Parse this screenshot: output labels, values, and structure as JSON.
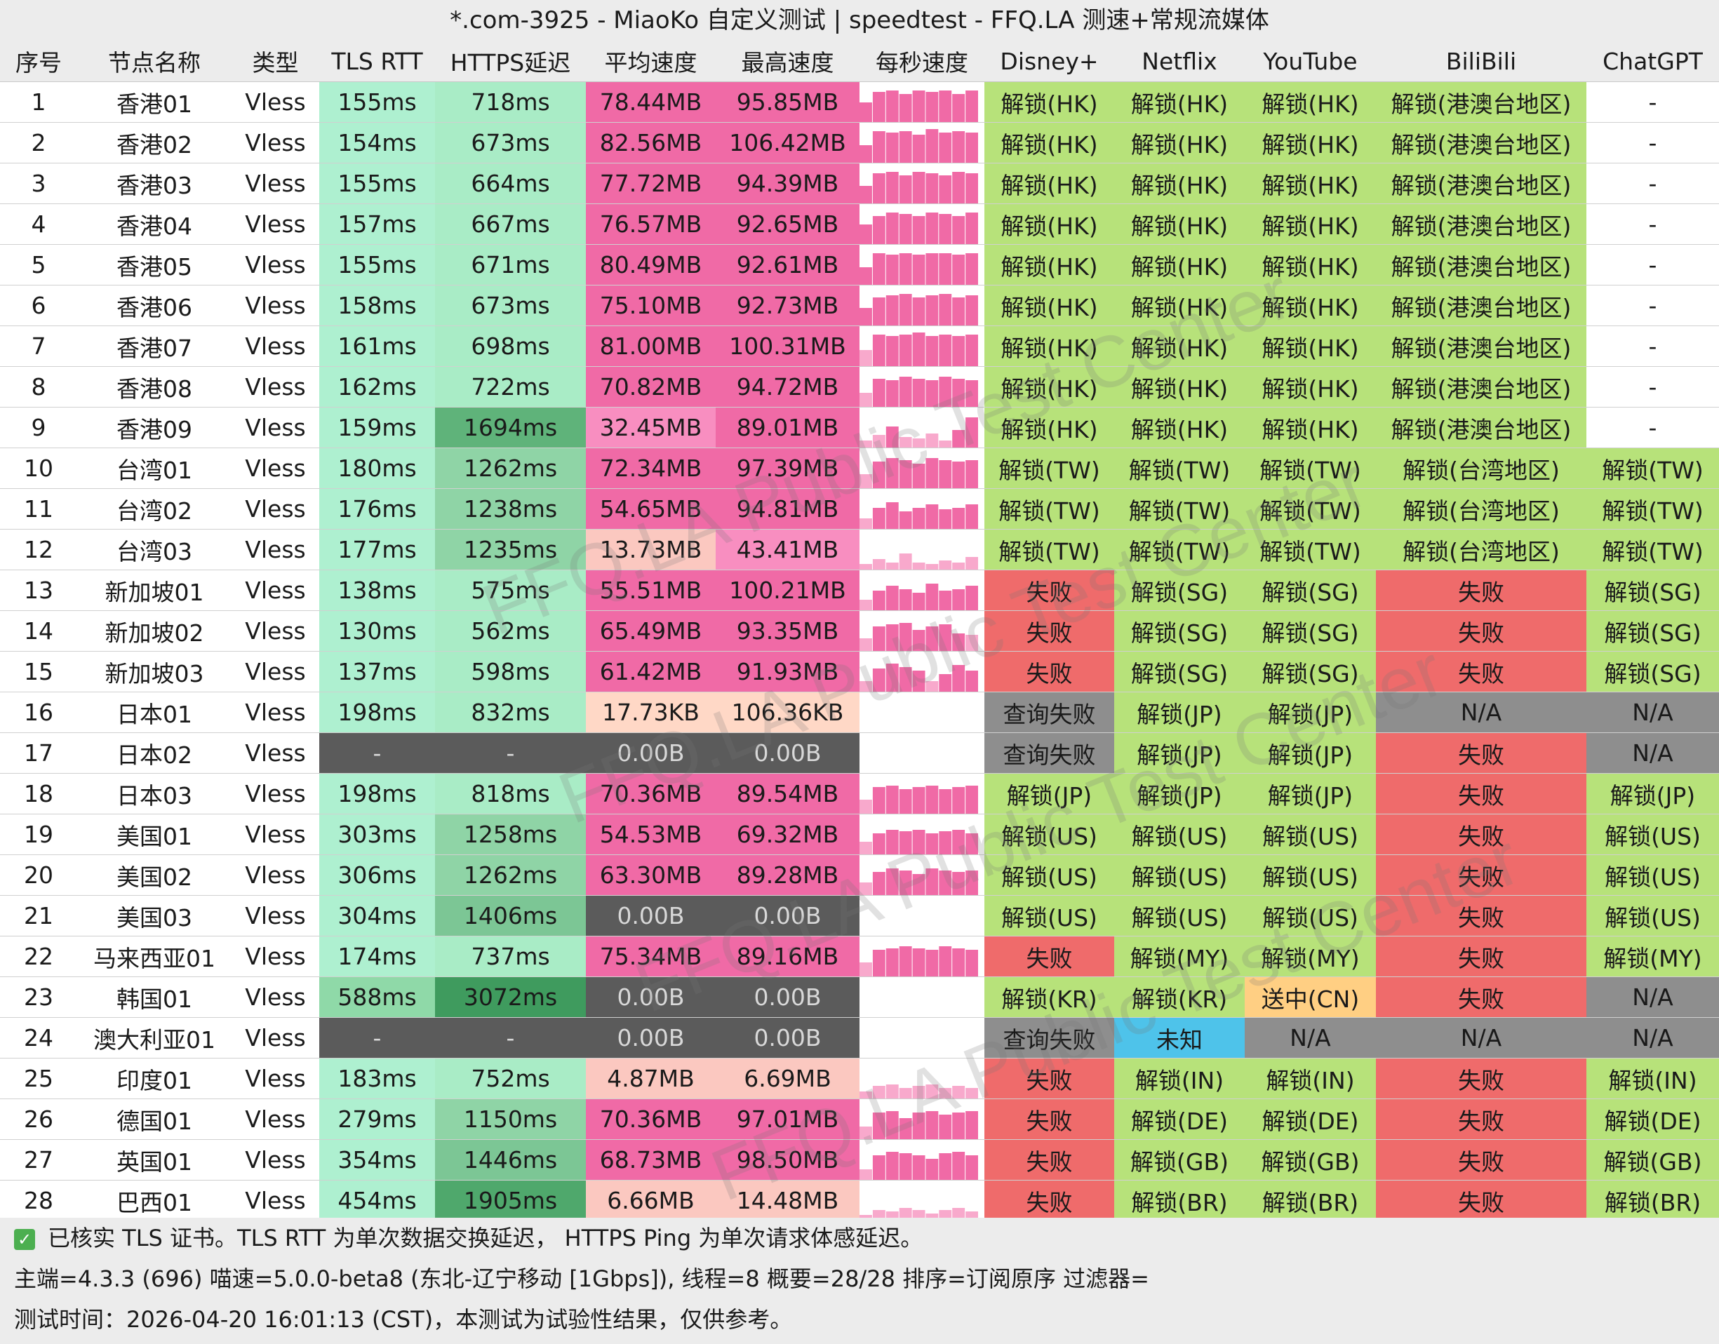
{
  "title": "*.com-3925 - MiaoKo 自定义测试 | speedtest - FFQ.LA 测速+常规流媒体",
  "columns": [
    "序号",
    "节点名称",
    "类型",
    "TLS RTT",
    "HTTPS延迟",
    "平均速度",
    "最高速度",
    "每秒速度",
    "Disney+",
    "Netflix",
    "YouTube",
    "BiliBili",
    "ChatGPT"
  ],
  "rows": [
    {
      "no": "1",
      "name": "香港01",
      "type": "Vless",
      "tls": "155ms",
      "https": "718ms",
      "avg": "78.44MB",
      "max": "95.85MB",
      "spark": [
        0.55,
        0.85,
        0.9,
        0.8,
        0.9,
        0.85,
        0.9,
        0.8,
        0.9
      ],
      "disney": "解锁(HK)",
      "netflix": "解锁(HK)",
      "youtube": "解锁(HK)",
      "bili": "解锁(港澳台地区)",
      "gpt": "-"
    },
    {
      "no": "2",
      "name": "香港02",
      "type": "Vless",
      "tls": "154ms",
      "https": "673ms",
      "avg": "82.56MB",
      "max": "106.42MB",
      "spark": [
        0.5,
        0.9,
        0.85,
        0.9,
        0.8,
        0.95,
        0.85,
        0.9,
        0.85
      ],
      "disney": "解锁(HK)",
      "netflix": "解锁(HK)",
      "youtube": "解锁(HK)",
      "bili": "解锁(港澳台地区)",
      "gpt": "-"
    },
    {
      "no": "3",
      "name": "香港03",
      "type": "Vless",
      "tls": "155ms",
      "https": "664ms",
      "avg": "77.72MB",
      "max": "94.39MB",
      "spark": [
        0.5,
        0.85,
        0.9,
        0.8,
        0.9,
        0.85,
        0.8,
        0.9,
        0.85
      ],
      "disney": "解锁(HK)",
      "netflix": "解锁(HK)",
      "youtube": "解锁(HK)",
      "bili": "解锁(港澳台地区)",
      "gpt": "-"
    },
    {
      "no": "4",
      "name": "香港04",
      "type": "Vless",
      "tls": "157ms",
      "https": "667ms",
      "avg": "76.57MB",
      "max": "92.65MB",
      "spark": [
        0.55,
        0.8,
        0.9,
        0.85,
        0.8,
        0.9,
        0.85,
        0.8,
        0.9
      ],
      "disney": "解锁(HK)",
      "netflix": "解锁(HK)",
      "youtube": "解锁(HK)",
      "bili": "解锁(港澳台地区)",
      "gpt": "-"
    },
    {
      "no": "5",
      "name": "香港05",
      "type": "Vless",
      "tls": "155ms",
      "https": "671ms",
      "avg": "80.49MB",
      "max": "92.61MB",
      "spark": [
        0.5,
        0.9,
        0.85,
        0.9,
        0.85,
        0.9,
        0.9,
        0.85,
        0.9
      ],
      "disney": "解锁(HK)",
      "netflix": "解锁(HK)",
      "youtube": "解锁(HK)",
      "bili": "解锁(港澳台地区)",
      "gpt": "-"
    },
    {
      "no": "6",
      "name": "香港06",
      "type": "Vless",
      "tls": "158ms",
      "https": "673ms",
      "avg": "75.10MB",
      "max": "92.73MB",
      "spark": [
        0.5,
        0.8,
        0.85,
        0.9,
        0.8,
        0.85,
        0.9,
        0.8,
        0.85
      ],
      "disney": "解锁(HK)",
      "netflix": "解锁(HK)",
      "youtube": "解锁(HK)",
      "bili": "解锁(港澳台地区)",
      "gpt": "-"
    },
    {
      "no": "7",
      "name": "香港07",
      "type": "Vless",
      "tls": "161ms",
      "https": "698ms",
      "avg": "81.00MB",
      "max": "100.31MB",
      "spark": [
        0.45,
        0.9,
        0.85,
        0.9,
        0.95,
        0.85,
        0.9,
        0.85,
        0.9
      ],
      "disney": "解锁(HK)",
      "netflix": "解锁(HK)",
      "youtube": "解锁(HK)",
      "bili": "解锁(港澳台地区)",
      "gpt": "-"
    },
    {
      "no": "8",
      "name": "香港08",
      "type": "Vless",
      "tls": "162ms",
      "https": "722ms",
      "avg": "70.82MB",
      "max": "94.72MB",
      "spark": [
        0.4,
        0.8,
        0.75,
        0.85,
        0.8,
        0.75,
        0.85,
        0.8,
        0.75
      ],
      "disney": "解锁(HK)",
      "netflix": "解锁(HK)",
      "youtube": "解锁(HK)",
      "bili": "解锁(港澳台地区)",
      "gpt": "-"
    },
    {
      "no": "9",
      "name": "香港09",
      "type": "Vless",
      "tls": "159ms",
      "https": "1694ms",
      "avg": "32.45MB",
      "max": "89.01MB",
      "spark": [
        0.2,
        0.35,
        0.6,
        0.3,
        0.25,
        0.4,
        0.2,
        0.5,
        0.85
      ],
      "disney": "解锁(HK)",
      "netflix": "解锁(HK)",
      "youtube": "解锁(HK)",
      "bili": "解锁(港澳台地区)",
      "gpt": "-"
    },
    {
      "no": "10",
      "name": "台湾01",
      "type": "Vless",
      "tls": "180ms",
      "https": "1262ms",
      "avg": "72.34MB",
      "max": "97.39MB",
      "spark": [
        0.4,
        0.75,
        0.85,
        0.8,
        0.7,
        0.85,
        0.8,
        0.75,
        0.8
      ],
      "disney": "解锁(TW)",
      "netflix": "解锁(TW)",
      "youtube": "解锁(TW)",
      "bili": "解锁(台湾地区)",
      "gpt": "解锁(TW)"
    },
    {
      "no": "11",
      "name": "台湾02",
      "type": "Vless",
      "tls": "176ms",
      "https": "1238ms",
      "avg": "54.65MB",
      "max": "94.81MB",
      "spark": [
        0.3,
        0.6,
        0.75,
        0.5,
        0.6,
        0.7,
        0.55,
        0.6,
        0.7
      ],
      "disney": "解锁(TW)",
      "netflix": "解锁(TW)",
      "youtube": "解锁(TW)",
      "bili": "解锁(台湾地区)",
      "gpt": "解锁(TW)"
    },
    {
      "no": "12",
      "name": "台湾03",
      "type": "Vless",
      "tls": "177ms",
      "https": "1235ms",
      "avg": "13.73MB",
      "max": "43.41MB",
      "spark": [
        0.15,
        0.3,
        0.2,
        0.45,
        0.2,
        0.15,
        0.25,
        0.2,
        0.35
      ],
      "disney": "解锁(TW)",
      "netflix": "解锁(TW)",
      "youtube": "解锁(TW)",
      "bili": "解锁(台湾地区)",
      "gpt": "解锁(TW)"
    },
    {
      "no": "13",
      "name": "新加坡01",
      "type": "Vless",
      "tls": "138ms",
      "https": "575ms",
      "avg": "55.51MB",
      "max": "100.21MB",
      "spark": [
        0.3,
        0.55,
        0.7,
        0.6,
        0.5,
        0.75,
        0.55,
        0.6,
        0.7
      ],
      "disney": "失败",
      "netflix": "解锁(SG)",
      "youtube": "解锁(SG)",
      "bili": "失败",
      "gpt": "解锁(SG)"
    },
    {
      "no": "14",
      "name": "新加坡02",
      "type": "Vless",
      "tls": "130ms",
      "https": "562ms",
      "avg": "65.49MB",
      "max": "93.35MB",
      "spark": [
        0.35,
        0.7,
        0.75,
        0.8,
        0.6,
        0.7,
        0.75,
        0.5,
        0.45
      ],
      "disney": "失败",
      "netflix": "解锁(SG)",
      "youtube": "解锁(SG)",
      "bili": "失败",
      "gpt": "解锁(SG)"
    },
    {
      "no": "15",
      "name": "新加坡03",
      "type": "Vless",
      "tls": "137ms",
      "https": "598ms",
      "avg": "61.42MB",
      "max": "91.93MB",
      "spark": [
        0.3,
        0.65,
        0.8,
        0.7,
        0.6,
        0.3,
        0.5,
        0.75,
        0.6
      ],
      "disney": "失败",
      "netflix": "解锁(SG)",
      "youtube": "解锁(SG)",
      "bili": "失败",
      "gpt": "解锁(SG)"
    },
    {
      "no": "16",
      "name": "日本01",
      "type": "Vless",
      "tls": "198ms",
      "https": "832ms",
      "avg": "17.73KB",
      "max": "106.36KB",
      "spark": [],
      "disney": "查询失败",
      "netflix": "解锁(JP)",
      "youtube": "解锁(JP)",
      "bili": "N/A",
      "gpt": "N/A"
    },
    {
      "no": "17",
      "name": "日本02",
      "type": "Vless",
      "tls": "-",
      "https": "-",
      "avg": "0.00B",
      "max": "0.00B",
      "spark": [],
      "disney": "查询失败",
      "netflix": "解锁(JP)",
      "youtube": "解锁(JP)",
      "bili": "失败",
      "gpt": "N/A"
    },
    {
      "no": "18",
      "name": "日本03",
      "type": "Vless",
      "tls": "198ms",
      "https": "818ms",
      "avg": "70.36MB",
      "max": "89.54MB",
      "spark": [
        0.4,
        0.75,
        0.8,
        0.7,
        0.75,
        0.8,
        0.7,
        0.75,
        0.8
      ],
      "disney": "解锁(JP)",
      "netflix": "解锁(JP)",
      "youtube": "解锁(JP)",
      "bili": "失败",
      "gpt": "解锁(JP)"
    },
    {
      "no": "19",
      "name": "美国01",
      "type": "Vless",
      "tls": "303ms",
      "https": "1258ms",
      "avg": "54.53MB",
      "max": "69.32MB",
      "spark": [
        0.35,
        0.6,
        0.7,
        0.65,
        0.7,
        0.6,
        0.65,
        0.7,
        0.6
      ],
      "disney": "解锁(US)",
      "netflix": "解锁(US)",
      "youtube": "解锁(US)",
      "bili": "失败",
      "gpt": "解锁(US)"
    },
    {
      "no": "20",
      "name": "美国02",
      "type": "Vless",
      "tls": "306ms",
      "https": "1262ms",
      "avg": "63.30MB",
      "max": "89.28MB",
      "spark": [
        0.35,
        0.65,
        0.75,
        0.7,
        0.6,
        0.75,
        0.7,
        0.65,
        0.7
      ],
      "disney": "解锁(US)",
      "netflix": "解锁(US)",
      "youtube": "解锁(US)",
      "bili": "失败",
      "gpt": "解锁(US)"
    },
    {
      "no": "21",
      "name": "美国03",
      "type": "Vless",
      "tls": "304ms",
      "https": "1406ms",
      "avg": "0.00B",
      "max": "0.00B",
      "spark": [],
      "disney": "解锁(US)",
      "netflix": "解锁(US)",
      "youtube": "解锁(US)",
      "bili": "失败",
      "gpt": "解锁(US)"
    },
    {
      "no": "22",
      "name": "马来西亚01",
      "type": "Vless",
      "tls": "174ms",
      "https": "737ms",
      "avg": "75.34MB",
      "max": "89.16MB",
      "spark": [
        0.4,
        0.75,
        0.8,
        0.85,
        0.8,
        0.75,
        0.85,
        0.8,
        0.75
      ],
      "disney": "失败",
      "netflix": "解锁(MY)",
      "youtube": "解锁(MY)",
      "bili": "失败",
      "gpt": "解锁(MY)"
    },
    {
      "no": "23",
      "name": "韩国01",
      "type": "Vless",
      "tls": "588ms",
      "https": "3072ms",
      "avg": "0.00B",
      "max": "0.00B",
      "spark": [],
      "disney": "解锁(KR)",
      "netflix": "解锁(KR)",
      "youtube": "送中(CN)",
      "bili": "失败",
      "gpt": "N/A"
    },
    {
      "no": "24",
      "name": "澳大利亚01",
      "type": "Vless",
      "tls": "-",
      "https": "-",
      "avg": "0.00B",
      "max": "0.00B",
      "spark": [],
      "disney": "查询失败",
      "netflix": "未知",
      "youtube": "N/A",
      "bili": "N/A",
      "gpt": "N/A"
    },
    {
      "no": "25",
      "name": "印度01",
      "type": "Vless",
      "tls": "183ms",
      "https": "752ms",
      "avg": "4.87MB",
      "max": "6.69MB",
      "spark": [
        0.2,
        0.35,
        0.4,
        0.3,
        0.35,
        0.4,
        0.3,
        0.35,
        0.3
      ],
      "disney": "失败",
      "netflix": "解锁(IN)",
      "youtube": "解锁(IN)",
      "bili": "失败",
      "gpt": "解锁(IN)"
    },
    {
      "no": "26",
      "name": "德国01",
      "type": "Vless",
      "tls": "279ms",
      "https": "1150ms",
      "avg": "70.36MB",
      "max": "97.01MB",
      "spark": [
        0.35,
        0.75,
        0.8,
        0.6,
        0.75,
        0.8,
        0.7,
        0.75,
        0.8
      ],
      "disney": "失败",
      "netflix": "解锁(DE)",
      "youtube": "解锁(DE)",
      "bili": "失败",
      "gpt": "解锁(DE)"
    },
    {
      "no": "27",
      "name": "英国01",
      "type": "Vless",
      "tls": "354ms",
      "https": "1446ms",
      "avg": "68.73MB",
      "max": "98.50MB",
      "spark": [
        0.3,
        0.7,
        0.8,
        0.75,
        0.7,
        0.6,
        0.75,
        0.8,
        0.7
      ],
      "disney": "失败",
      "netflix": "解锁(GB)",
      "youtube": "解锁(GB)",
      "bili": "失败",
      "gpt": "解锁(GB)"
    },
    {
      "no": "28",
      "name": "巴西01",
      "type": "Vless",
      "tls": "454ms",
      "https": "1905ms",
      "avg": "6.66MB",
      "max": "14.48MB",
      "spark": [
        0.15,
        0.3,
        0.25,
        0.35,
        0.3,
        0.2,
        0.3,
        0.35,
        0.25
      ],
      "disney": "失败",
      "netflix": "解锁(BR)",
      "youtube": "解锁(BR)",
      "bili": "失败",
      "gpt": "解锁(BR)"
    }
  ],
  "footer": {
    "line1": "已核实 TLS 证书。TLS RTT 为单次数据交换延迟， HTTPS Ping 为单次请求体感延迟。",
    "line2": "主端=4.3.3 (696) 喵速=5.0.0-beta8 (东北-辽宁移动 [1Gbps]), 线程=8 概要=28/28 排序=订阅原序 过滤器=",
    "line3": "测试时间：2026-04-20 16:01:13 (CST)，本测试为试验性结果，仅供参考。"
  },
  "watermark": "FFQ.LA Public Test Center",
  "icons": {
    "footer_check": "check-icon"
  },
  "colors": {
    "header_bg": "#ececec",
    "unlock": "#b7e27a",
    "fail": "#ef6b6b",
    "query_fail": "#8e8e8e",
    "na": "#8e8e8e",
    "unknown": "#4ec3ea",
    "sent_to_cn": "#ffcf83",
    "empty_dark": "#5b5b5b",
    "tls_green": "#aef0d0",
    "speed_pink": "#f06aa6",
    "speed_light": "#fbc8c0",
    "spark_bar": "#f06aa6"
  }
}
